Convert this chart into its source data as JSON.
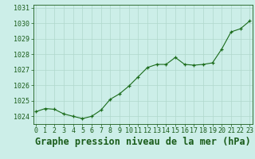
{
  "title": "Graphe pression niveau de la mer (hPa)",
  "x_values": [
    0,
    1,
    2,
    3,
    4,
    5,
    6,
    7,
    8,
    9,
    10,
    11,
    12,
    13,
    14,
    15,
    16,
    17,
    18,
    19,
    20,
    21,
    22,
    23
  ],
  "y_values": [
    1024.3,
    1024.5,
    1024.45,
    1024.15,
    1024.0,
    1023.85,
    1024.0,
    1024.4,
    1025.1,
    1025.45,
    1025.95,
    1026.55,
    1027.15,
    1027.35,
    1027.35,
    1027.8,
    1027.35,
    1027.3,
    1027.35,
    1027.45,
    1028.35,
    1029.45,
    1029.65,
    1030.15
  ],
  "line_color": "#1a6b1a",
  "marker": "+",
  "marker_size": 3.5,
  "marker_lw": 0.9,
  "line_width": 0.8,
  "background_color": "#cceee8",
  "grid_color": "#b0d8cc",
  "ylim": [
    1023.5,
    1031.2
  ],
  "xlim": [
    -0.3,
    23.3
  ],
  "yticks": [
    1024,
    1025,
    1026,
    1027,
    1028,
    1029,
    1030,
    1031
  ],
  "xtick_labels": [
    "0",
    "1",
    "2",
    "3",
    "4",
    "5",
    "6",
    "7",
    "8",
    "9",
    "10",
    "11",
    "12",
    "13",
    "14",
    "15",
    "16",
    "17",
    "18",
    "19",
    "20",
    "21",
    "22",
    "23"
  ],
  "title_fontsize": 8.5,
  "tick_fontsize": 6,
  "axis_label_color": "#1a5c1a",
  "tick_color": "#1a5c1a",
  "spine_color": "#1a5c1a"
}
